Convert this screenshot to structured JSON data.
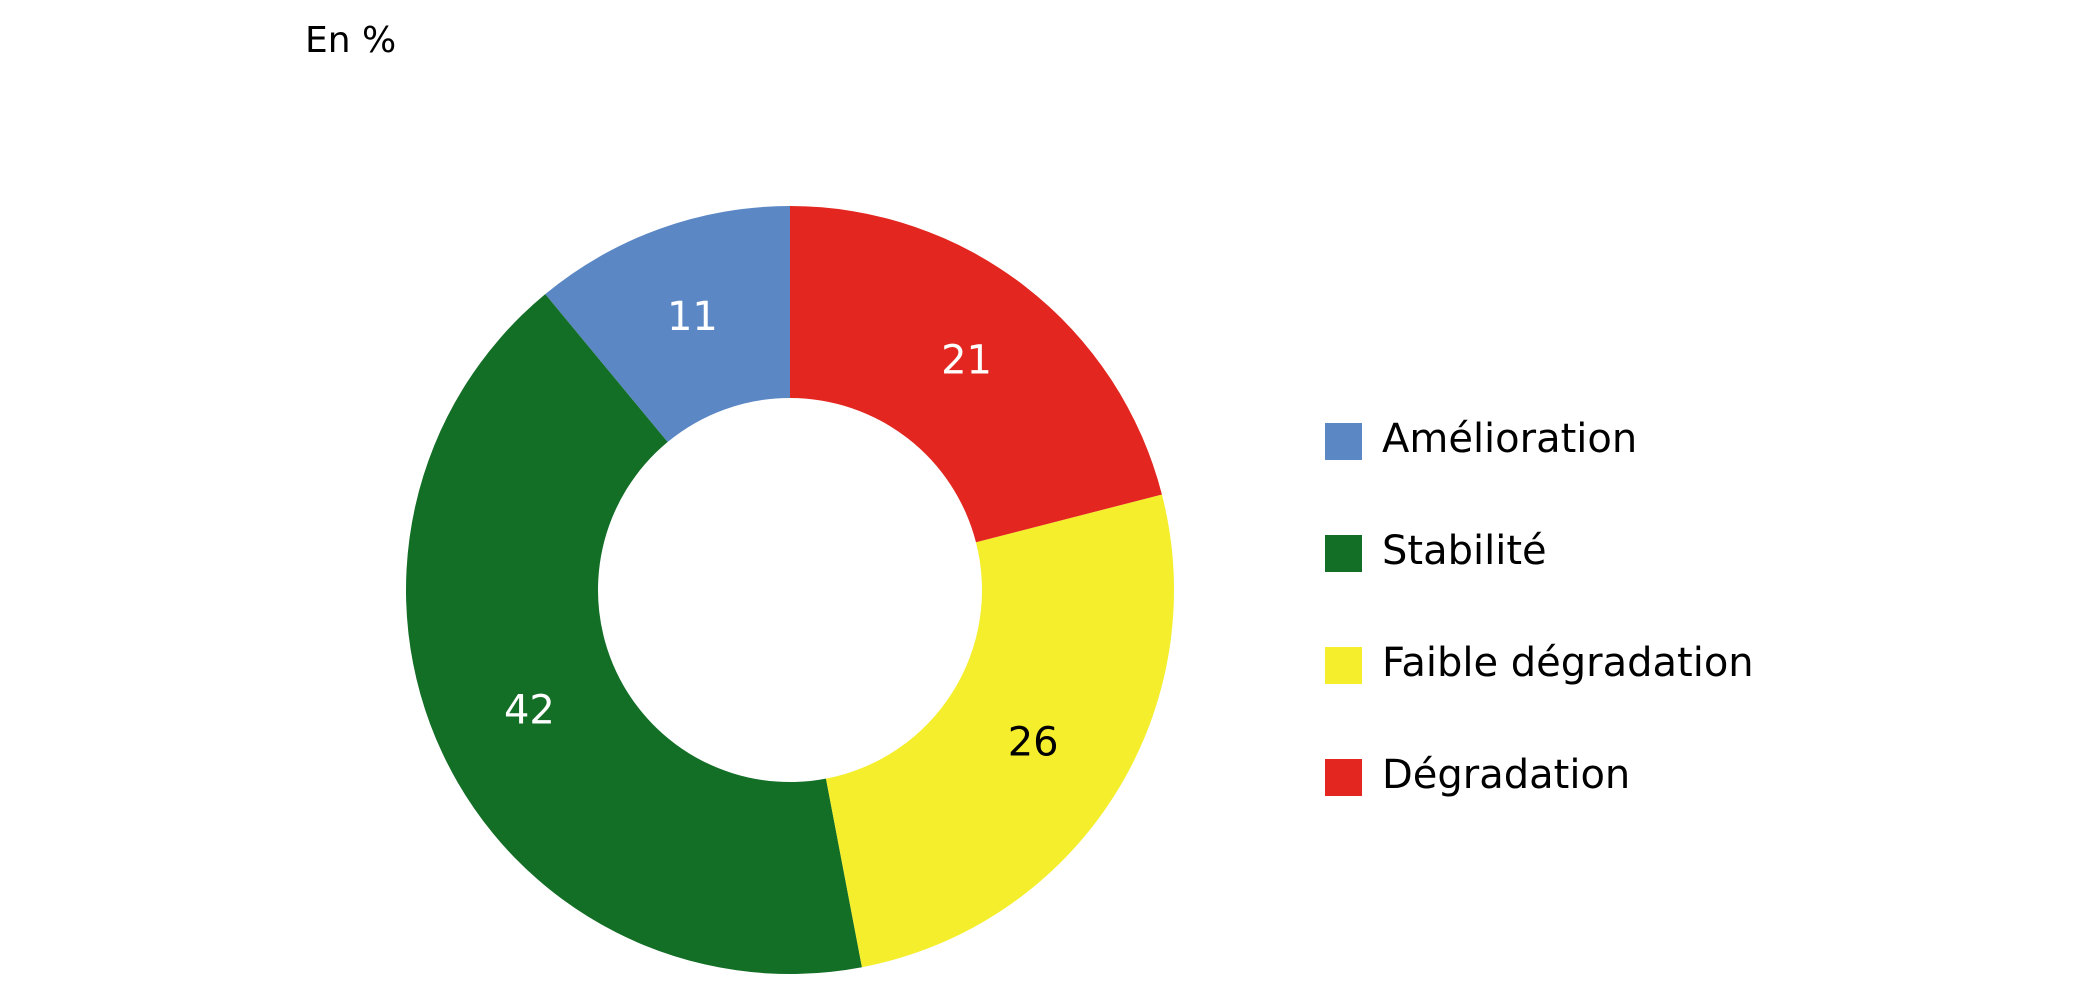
{
  "chart_data": {
    "type": "donut",
    "title": "En %",
    "categories": [
      "Amélioration",
      "Stabilité",
      "Faible dégradation",
      "Dégradation"
    ],
    "values": [
      11,
      42,
      26,
      21
    ],
    "colors": [
      "#5b87c5",
      "#136e26",
      "#f4ee2c",
      "#e3261f"
    ],
    "legend": "right"
  }
}
